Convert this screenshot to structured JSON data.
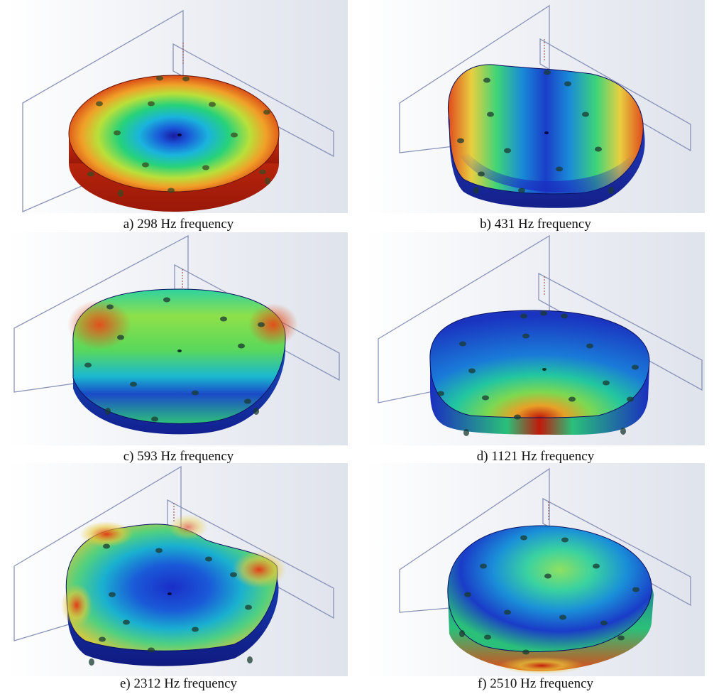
{
  "figure": {
    "panels": [
      {
        "id": "a",
        "caption": "a) 298 Hz frequency",
        "mode_shape": "axisymmetric-umbrella"
      },
      {
        "id": "b",
        "caption": "b) 431 Hz frequency",
        "mode_shape": "saddle"
      },
      {
        "id": "c",
        "caption": "c) 593 Hz frequency",
        "mode_shape": "bending"
      },
      {
        "id": "d",
        "caption": "d) 1121 Hz frequency",
        "mode_shape": "front-lobe"
      },
      {
        "id": "e",
        "caption": "e) 2312 Hz frequency",
        "mode_shape": "four-lobe"
      },
      {
        "id": "f",
        "caption": "f) 2510 Hz frequency",
        "mode_shape": "ring-mode"
      }
    ],
    "colormap": [
      "#1a33c8",
      "#1aa0e0",
      "#2fd67a",
      "#e6e040",
      "#e25a1c",
      "#c01a0a"
    ]
  }
}
